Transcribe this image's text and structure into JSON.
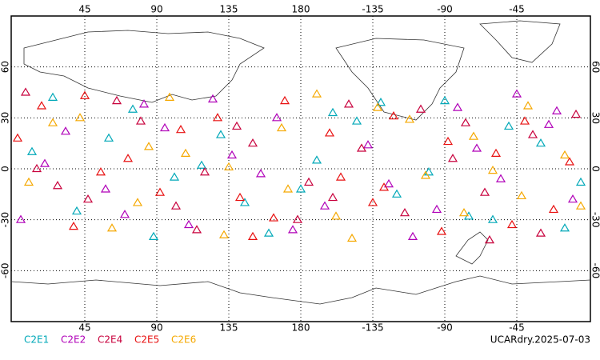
{
  "chart_data": {
    "type": "scatter",
    "label": "UCARdry.2025-07-03",
    "xlim": [
      0,
      360
    ],
    "ylim": [
      -90,
      90
    ],
    "xticks": [
      45,
      90,
      135,
      180,
      {
        "value": 225,
        "label": "-135"
      },
      {
        "value": 270,
        "label": "-90"
      },
      {
        "value": 315,
        "label": "-45"
      }
    ],
    "yticks": [
      60,
      30,
      0,
      -30,
      -60
    ],
    "grid": true,
    "series": [
      {
        "name": "C2E1",
        "color": "#00a8b8",
        "lon": [
          12,
          40,
          75,
          101,
          130,
          160,
          190,
          215,
          240,
          270,
          300,
          330,
          355,
          25,
          88,
          145,
          200,
          260,
          310,
          345,
          60,
          180,
          230,
          285,
          118
        ],
        "lat": [
          10,
          -25,
          35,
          -5,
          20,
          -38,
          5,
          28,
          -15,
          40,
          -30,
          15,
          -8,
          42,
          -40,
          -20,
          33,
          -2,
          25,
          -35,
          18,
          -12,
          39,
          -28,
          2
        ]
      },
      {
        "name": "C2E2",
        "color": "#b000b8",
        "lon": [
          5,
          33,
          58,
          82,
          110,
          137,
          165,
          195,
          222,
          250,
          278,
          305,
          335,
          350,
          20,
          70,
          125,
          175,
          235,
          290,
          340,
          95,
          155,
          265,
          315
        ],
        "lat": [
          -30,
          22,
          -12,
          38,
          -33,
          8,
          30,
          -22,
          14,
          -40,
          36,
          -6,
          26,
          -18,
          3,
          -27,
          41,
          -36,
          -9,
          12,
          34,
          24,
          -3,
          -24,
          44
        ]
      },
      {
        "name": "C2E4",
        "color": "#c8003c",
        "lon": [
          15,
          47,
          80,
          115,
          150,
          185,
          210,
          245,
          275,
          298,
          325,
          352,
          28,
          65,
          102,
          140,
          178,
          218,
          255,
          295,
          330,
          8,
          120,
          200,
          283
        ],
        "lat": [
          0,
          -18,
          28,
          -36,
          15,
          -8,
          38,
          -26,
          6,
          -42,
          20,
          32,
          -10,
          40,
          -22,
          25,
          -30,
          12,
          35,
          -14,
          -38,
          45,
          -2,
          -17,
          27
        ]
      },
      {
        "name": "C2E5",
        "color": "#e81010",
        "lon": [
          3,
          38,
          72,
          105,
          142,
          170,
          205,
          238,
          268,
          302,
          338,
          18,
          55,
          92,
          128,
          163,
          198,
          232,
          272,
          312,
          348,
          45,
          150,
          225,
          320
        ],
        "lat": [
          18,
          -34,
          6,
          23,
          -17,
          40,
          -5,
          31,
          -37,
          9,
          -24,
          37,
          -2,
          -14,
          30,
          -29,
          21,
          -11,
          16,
          -33,
          4,
          43,
          -40,
          -20,
          28
        ]
      },
      {
        "name": "C2E6",
        "color": "#f5a800",
        "lon": [
          10,
          42,
          78,
          108,
          132,
          168,
          202,
          228,
          258,
          288,
          318,
          345,
          25,
          62,
          98,
          135,
          172,
          212,
          248,
          282,
          322,
          355,
          85,
          190,
          300
        ],
        "lat": [
          -8,
          30,
          -20,
          9,
          -39,
          24,
          -28,
          36,
          -4,
          19,
          -16,
          8,
          27,
          -35,
          42,
          1,
          -12,
          -41,
          29,
          -26,
          37,
          -22,
          13,
          44,
          -1
        ]
      }
    ]
  }
}
